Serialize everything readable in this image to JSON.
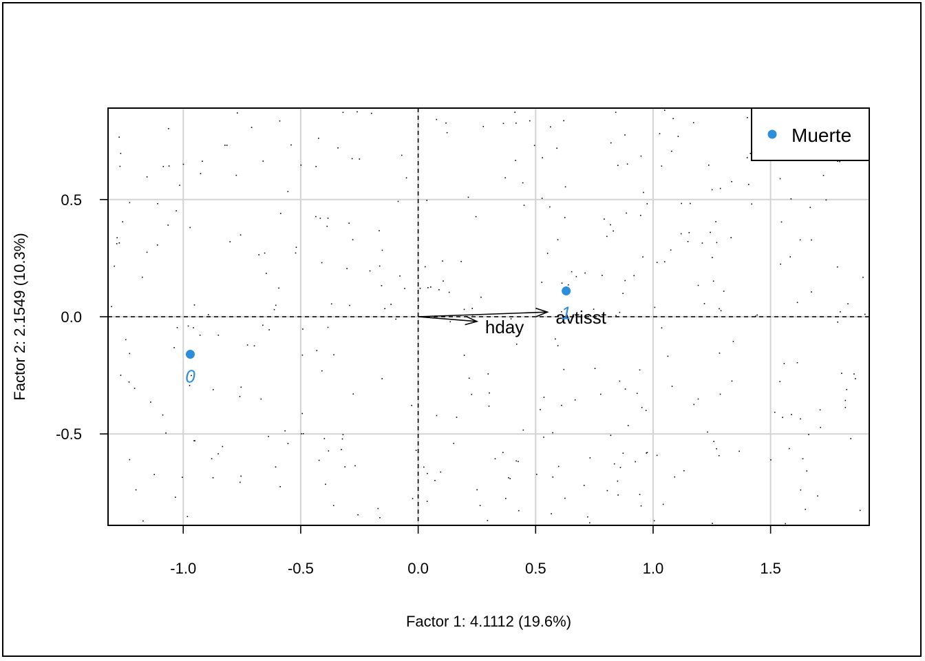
{
  "chart_data": {
    "type": "scatter",
    "title": "",
    "xlabel": "Factor 1: 4.1112 (19.6%)",
    "ylabel": "Factor 2: 2.1549 (10.3%)",
    "xlim": [
      -1.32,
      1.92
    ],
    "ylim": [
      -0.89,
      0.89
    ],
    "x_ticks": [
      -1.0,
      -0.5,
      0.0,
      0.5,
      1.0,
      1.5
    ],
    "x_tick_labels": [
      "-1.0",
      "-0.5",
      "0.0",
      "0.5",
      "1.0",
      "1.5"
    ],
    "y_ticks": [
      -0.5,
      0.0,
      0.5
    ],
    "y_tick_labels": [
      "-0.5",
      "0.0",
      "0.5"
    ],
    "grid": true,
    "reference_lines": {
      "x": 0,
      "y": 0,
      "style": "dashed"
    },
    "legend": {
      "position": "top-right",
      "entries": [
        {
          "label": "Muerte",
          "color": "#2b8fdb"
        }
      ]
    },
    "series": [
      {
        "name": "Muerte",
        "color": "#2b8fdb",
        "points": [
          {
            "label": "0",
            "x": -0.97,
            "y": -0.16
          },
          {
            "label": "1",
            "x": 0.63,
            "y": 0.11
          }
        ]
      }
    ],
    "variable_arrows": [
      {
        "label": "hday",
        "x": 0.25,
        "y": -0.02
      },
      {
        "label": "avtisst",
        "x": 0.55,
        "y": 0.02
      }
    ],
    "background_points_count": 400
  }
}
